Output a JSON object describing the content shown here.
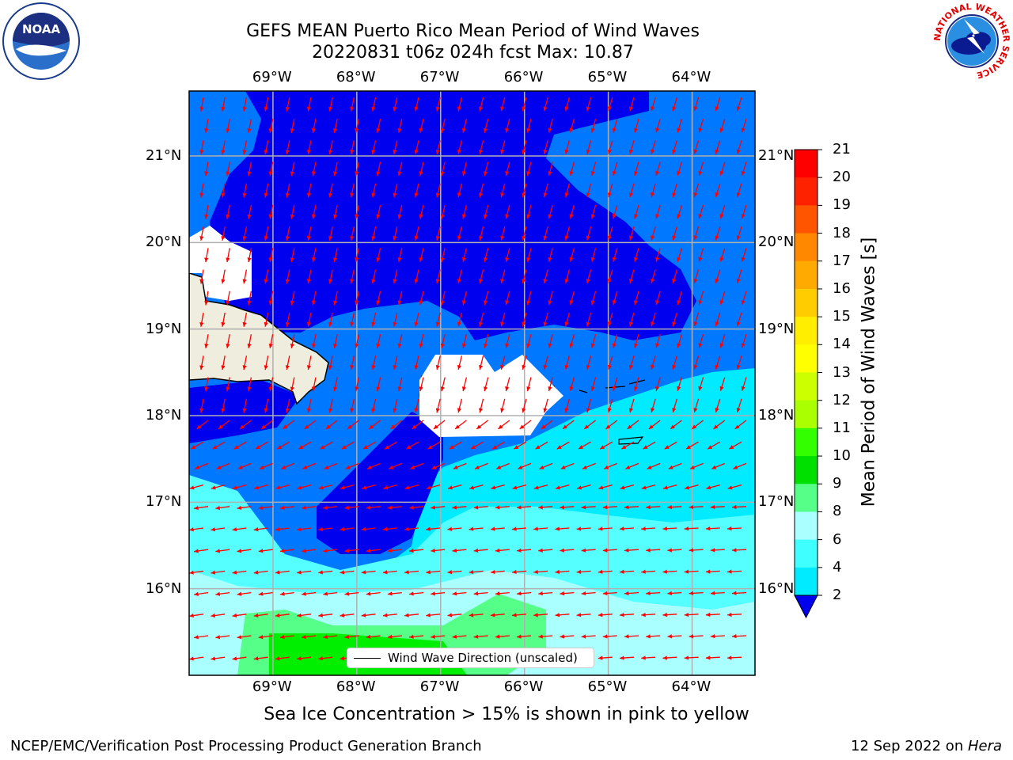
{
  "title": {
    "line1": "GEFS MEAN Puerto Rico Mean Period of Wind Waves",
    "line2": "20220831 t06z 024h fcst   Max: 10.87"
  },
  "logos": {
    "left": {
      "icon": "noaa-logo-icon",
      "text": "NOAA"
    },
    "right": {
      "icon": "nws-logo-icon",
      "text": "NATIONAL WEATHER SERVICE"
    }
  },
  "axes": {
    "lon_labels": [
      "69°W",
      "68°W",
      "67°W",
      "66°W",
      "65°W",
      "64°W"
    ],
    "lat_labels": [
      "21°N",
      "20°N",
      "19°N",
      "18°N",
      "17°N",
      "16°N"
    ],
    "lon_range": [
      -70.0,
      -63.25
    ],
    "lat_range": [
      15.0,
      21.75
    ]
  },
  "legend": {
    "text": "Wind Wave Direction (unscaled)"
  },
  "colorbar": {
    "label": "Mean Period of Wind Waves [s]",
    "ticks": [
      "21",
      "20",
      "19",
      "18",
      "17",
      "16",
      "15",
      "14",
      "13",
      "12",
      "11",
      "10",
      "9",
      "8",
      "6",
      "4",
      "2"
    ],
    "colors": [
      "#0000ee",
      "#0078ff",
      "#00ebff",
      "#40ffff",
      "#aaffff",
      "#55ff88",
      "#00e000",
      "#33ff00",
      "#aaff00",
      "#ccff00",
      "#ffff00",
      "#ffee00",
      "#ffcc00",
      "#ffaa00",
      "#ff8800",
      "#ff5500",
      "#ff2200",
      "#ff0000"
    ],
    "under_color": "#0000ee"
  },
  "map_colors": {
    "deep_blue": "#0000ee",
    "blue": "#0078ff",
    "cyan": "#00ebff",
    "light_cyan": "#55ffff",
    "pale_cyan": "#aaffff",
    "light_green": "#55ff88",
    "green": "#00ee00",
    "land": "#eeedde",
    "arrow": "#ff0000"
  },
  "subtitle": "Sea Ice Concentration > 15% is shown in pink to yellow",
  "footer": {
    "left": "NCEP/EMC/Verification Post Processing Product Generation Branch",
    "right_prefix": "12 Sep 2022 on ",
    "right_italic": "Hera"
  }
}
